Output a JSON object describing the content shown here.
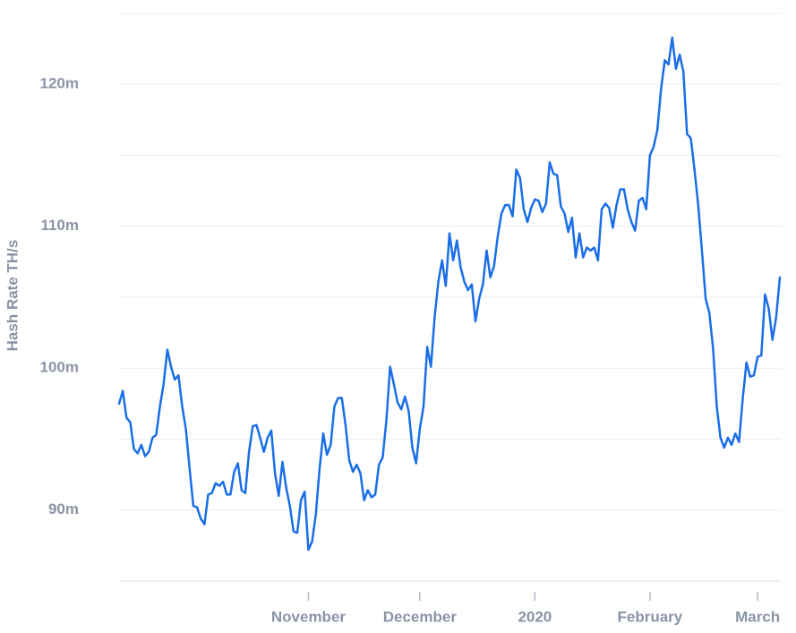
{
  "chart_data": {
    "type": "line",
    "y_label": "Hash Rate TH/s",
    "categories": [
      null,
      null,
      null,
      null,
      null,
      null,
      null,
      null,
      null,
      null,
      null,
      null,
      null,
      null,
      null,
      null,
      null,
      null,
      null,
      null,
      null,
      null,
      null,
      null,
      null,
      null,
      null,
      null,
      null,
      null,
      null,
      null,
      null,
      null,
      null,
      null,
      null,
      null,
      null,
      null,
      null,
      null,
      null,
      null,
      null,
      null,
      null,
      null,
      null,
      null,
      null,
      "November",
      null,
      null,
      null,
      null,
      null,
      null,
      null,
      null,
      null,
      null,
      null,
      null,
      null,
      null,
      null,
      null,
      null,
      null,
      null,
      null,
      null,
      null,
      null,
      null,
      null,
      null,
      null,
      null,
      null,
      "December",
      null,
      null,
      null,
      null,
      null,
      null,
      null,
      null,
      null,
      null,
      null,
      null,
      null,
      null,
      null,
      null,
      null,
      null,
      null,
      null,
      null,
      null,
      null,
      null,
      null,
      null,
      null,
      null,
      null,
      null,
      "2020",
      null,
      null,
      null,
      null,
      null,
      null,
      null,
      null,
      null,
      null,
      null,
      null,
      null,
      null,
      null,
      null,
      null,
      null,
      null,
      null,
      null,
      null,
      null,
      null,
      null,
      null,
      null,
      null,
      null,
      null,
      "February",
      null,
      null,
      null,
      null,
      null,
      null,
      null,
      null,
      null,
      null,
      null,
      null,
      null,
      null,
      null,
      null,
      null,
      null,
      null,
      null,
      null,
      null,
      null,
      null,
      null,
      null,
      null,
      null,
      "March",
      null,
      null,
      null,
      null,
      null,
      null
    ],
    "series": [
      {
        "color": "#1a6ee8",
        "values": [
          97.5,
          98.4,
          96.5,
          96.2,
          94.3,
          94.0,
          94.6,
          93.8,
          94.1,
          95.1,
          95.3,
          97.3,
          98.9,
          101.3,
          100.1,
          99.2,
          99.5,
          97.3,
          95.7,
          92.9,
          90.3,
          90.2,
          89.4,
          89.0,
          91.1,
          91.2,
          91.9,
          91.7,
          92.0,
          91.1,
          91.1,
          92.7,
          93.3,
          91.4,
          91.2,
          94.1,
          95.9,
          96.0,
          95.1,
          94.1,
          95.1,
          95.6,
          92.6,
          91.0,
          93.4,
          91.6,
          90.3,
          88.5,
          88.4,
          90.7,
          91.3,
          87.2,
          87.8,
          89.7,
          92.9,
          95.4,
          93.9,
          94.6,
          97.3,
          97.9,
          97.9,
          96.0,
          93.5,
          92.7,
          93.2,
          92.6,
          90.7,
          91.4,
          90.9,
          91.1,
          93.2,
          93.7,
          96.3,
          100.1,
          98.9,
          97.6,
          97.1,
          98.0,
          97.0,
          94.4,
          93.3,
          95.7,
          97.3,
          101.5,
          100.1,
          103.6,
          106.1,
          107.6,
          105.8,
          109.5,
          107.6,
          109.0,
          107.1,
          106.1,
          105.5,
          105.9,
          103.3,
          104.9,
          105.9,
          108.3,
          106.4,
          107.2,
          109.3,
          110.9,
          111.5,
          111.5,
          110.7,
          114.0,
          113.4,
          111.2,
          110.3,
          111.3,
          111.9,
          111.8,
          111.0,
          111.6,
          114.5,
          113.7,
          113.6,
          111.4,
          110.9,
          109.6,
          110.6,
          107.8,
          109.5,
          107.8,
          108.5,
          108.3,
          108.5,
          107.6,
          111.2,
          111.6,
          111.3,
          109.9,
          111.5,
          112.6,
          112.6,
          111.2,
          110.3,
          109.7,
          111.8,
          112.0,
          111.2,
          115.0,
          115.6,
          116.8,
          119.7,
          121.7,
          121.4,
          123.3,
          121.1,
          122.1,
          120.9,
          116.5,
          116.2,
          114.0,
          111.5,
          108.3,
          104.9,
          103.9,
          101.4,
          97.3,
          95.1,
          94.4,
          95.1,
          94.6,
          95.4,
          94.8,
          97.9,
          100.4,
          99.4,
          99.5,
          100.8,
          100.9,
          105.2,
          104.2,
          102.0,
          103.6,
          106.4
        ]
      }
    ],
    "ylim": [
      85,
      125
    ],
    "yticks": [
      {
        "value": 90,
        "label": "90m"
      },
      {
        "value": 100,
        "label": "100m"
      },
      {
        "value": 110,
        "label": "110m"
      },
      {
        "value": 120,
        "label": "120m"
      }
    ],
    "ygrid_minor": [
      95,
      105,
      115,
      125
    ],
    "grid": true
  }
}
